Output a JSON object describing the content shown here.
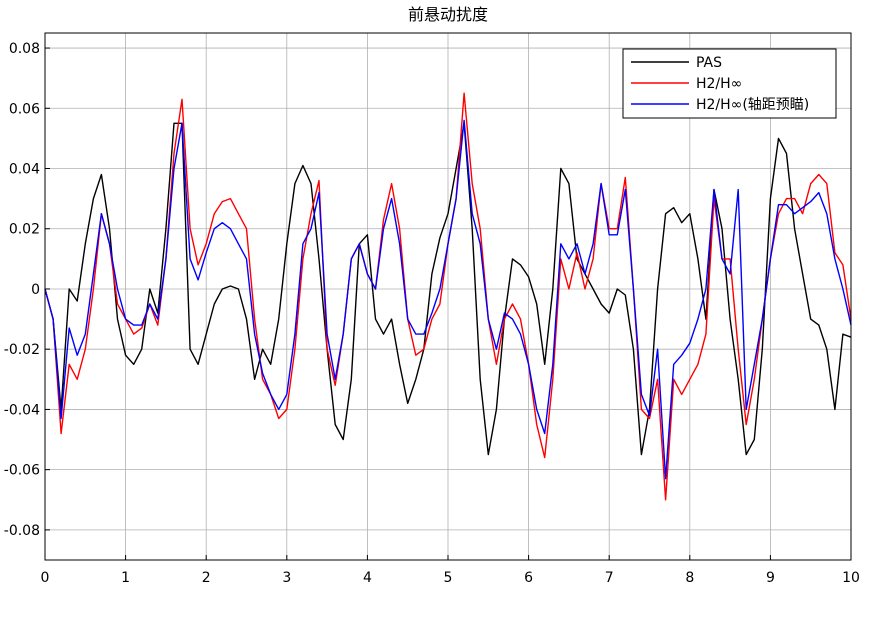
{
  "chart_data": {
    "type": "line",
    "title": "前悬动扰度",
    "x": [
      0,
      0.1,
      0.2,
      0.3,
      0.4,
      0.5,
      0.6,
      0.7,
      0.8,
      0.9,
      1,
      1.1,
      1.2,
      1.3,
      1.4,
      1.5,
      1.6,
      1.7,
      1.8,
      1.9,
      2,
      2.1,
      2.2,
      2.3,
      2.4,
      2.5,
      2.6,
      2.7,
      2.8,
      2.9,
      3,
      3.1,
      3.2,
      3.3,
      3.4,
      3.5,
      3.6,
      3.7,
      3.8,
      3.9,
      4,
      4.1,
      4.2,
      4.3,
      4.4,
      4.5,
      4.6,
      4.7,
      4.8,
      4.9,
      5,
      5.1,
      5.2,
      5.3,
      5.4,
      5.5,
      5.6,
      5.7,
      5.8,
      5.9,
      6,
      6.1,
      6.2,
      6.3,
      6.4,
      6.5,
      6.6,
      6.7,
      6.8,
      6.9,
      7,
      7.1,
      7.2,
      7.3,
      7.4,
      7.5,
      7.6,
      7.7,
      7.8,
      7.9,
      8,
      8.1,
      8.2,
      8.3,
      8.4,
      8.5,
      8.6,
      8.7,
      8.8,
      8.9,
      9,
      9.1,
      9.2,
      9.3,
      9.4,
      9.5,
      9.6,
      9.7,
      9.8,
      9.9,
      10
    ],
    "series": [
      {
        "name": "PAS",
        "color": "#000000",
        "values": [
          0,
          -0.01,
          -0.04,
          0.0,
          -0.004,
          0.015,
          0.03,
          0.038,
          0.02,
          -0.01,
          -0.022,
          -0.025,
          -0.02,
          0.0,
          -0.008,
          0.02,
          0.055,
          0.055,
          -0.02,
          -0.025,
          -0.015,
          -0.005,
          0.0,
          0.001,
          0.0,
          -0.01,
          -0.03,
          -0.02,
          -0.025,
          -0.01,
          0.015,
          0.035,
          0.041,
          0.035,
          0.01,
          -0.02,
          -0.045,
          -0.05,
          -0.03,
          0.015,
          0.018,
          -0.01,
          -0.015,
          -0.01,
          -0.025,
          -0.038,
          -0.03,
          -0.02,
          0.005,
          0.017,
          0.025,
          0.04,
          0.055,
          0.02,
          -0.03,
          -0.055,
          -0.04,
          -0.01,
          0.01,
          0.008,
          0.004,
          -0.005,
          -0.025,
          0.0,
          0.04,
          0.035,
          0.01,
          0.005,
          0.0,
          -0.005,
          -0.008,
          0.0,
          -0.002,
          -0.02,
          -0.055,
          -0.04,
          0.0,
          0.025,
          0.027,
          0.022,
          0.025,
          0.01,
          -0.01,
          0.033,
          0.02,
          -0.01,
          -0.03,
          -0.055,
          -0.05,
          -0.02,
          0.03,
          0.05,
          0.045,
          0.02,
          0.005,
          -0.01,
          -0.012,
          -0.02,
          -0.04,
          -0.015,
          -0.016
        ]
      },
      {
        "name": "H2/H∞",
        "color": "#ff0000",
        "values": [
          0,
          -0.01,
          -0.048,
          -0.025,
          -0.03,
          -0.02,
          0.0,
          0.025,
          0.015,
          -0.005,
          -0.01,
          -0.015,
          -0.013,
          -0.005,
          -0.012,
          0.01,
          0.045,
          0.063,
          0.02,
          0.008,
          0.015,
          0.025,
          0.029,
          0.03,
          0.025,
          0.02,
          -0.01,
          -0.03,
          -0.035,
          -0.043,
          -0.04,
          -0.02,
          0.01,
          0.025,
          0.036,
          -0.02,
          -0.032,
          -0.015,
          0.01,
          0.015,
          0.005,
          0.0,
          0.023,
          0.035,
          0.02,
          -0.01,
          -0.022,
          -0.02,
          -0.01,
          -0.005,
          0.015,
          0.03,
          0.065,
          0.035,
          0.02,
          -0.01,
          -0.025,
          -0.01,
          -0.005,
          -0.01,
          -0.025,
          -0.045,
          -0.056,
          -0.03,
          0.01,
          0.0,
          0.012,
          0.0,
          0.01,
          0.035,
          0.02,
          0.02,
          0.037,
          0.0,
          -0.04,
          -0.043,
          -0.03,
          -0.07,
          -0.03,
          -0.035,
          -0.03,
          -0.025,
          -0.015,
          0.03,
          0.01,
          0.01,
          -0.02,
          -0.045,
          -0.03,
          -0.01,
          0.01,
          0.025,
          0.03,
          0.03,
          0.025,
          0.035,
          0.038,
          0.035,
          0.012,
          0.008,
          -0.01
        ]
      },
      {
        "name": "H2/H∞(轴距预瞄)",
        "color": "#0000ff",
        "values": [
          0,
          -0.01,
          -0.043,
          -0.013,
          -0.022,
          -0.015,
          0.005,
          0.025,
          0.015,
          0.0,
          -0.01,
          -0.012,
          -0.012,
          -0.005,
          -0.01,
          0.01,
          0.04,
          0.055,
          0.01,
          0.003,
          0.012,
          0.02,
          0.022,
          0.02,
          0.015,
          0.01,
          -0.015,
          -0.028,
          -0.035,
          -0.04,
          -0.035,
          -0.015,
          0.015,
          0.02,
          0.032,
          -0.015,
          -0.03,
          -0.015,
          0.01,
          0.015,
          0.005,
          0.0,
          0.02,
          0.03,
          0.015,
          -0.01,
          -0.015,
          -0.015,
          -0.008,
          0.0,
          0.015,
          0.03,
          0.056,
          0.025,
          0.015,
          -0.01,
          -0.02,
          -0.008,
          -0.01,
          -0.015,
          -0.025,
          -0.04,
          -0.048,
          -0.025,
          0.015,
          0.01,
          0.015,
          0.005,
          0.015,
          0.035,
          0.018,
          0.018,
          0.033,
          0.0,
          -0.035,
          -0.042,
          -0.02,
          -0.063,
          -0.025,
          -0.022,
          -0.018,
          -0.01,
          0.0,
          0.033,
          0.01,
          0.005,
          0.033,
          -0.04,
          -0.025,
          -0.01,
          0.01,
          0.028,
          0.028,
          0.025,
          0.027,
          0.029,
          0.032,
          0.025,
          0.01,
          0.0,
          -0.012
        ]
      }
    ],
    "xlim": [
      0,
      10
    ],
    "xticks": [
      0,
      1,
      2,
      3,
      4,
      5,
      6,
      7,
      8,
      9,
      10
    ],
    "ylim": [
      -0.09,
      0.085
    ],
    "yticks": [
      -0.08,
      -0.06,
      -0.04,
      -0.02,
      0,
      0.02,
      0.04,
      0.06,
      0.08
    ],
    "grid": true,
    "legend": "upper right"
  }
}
